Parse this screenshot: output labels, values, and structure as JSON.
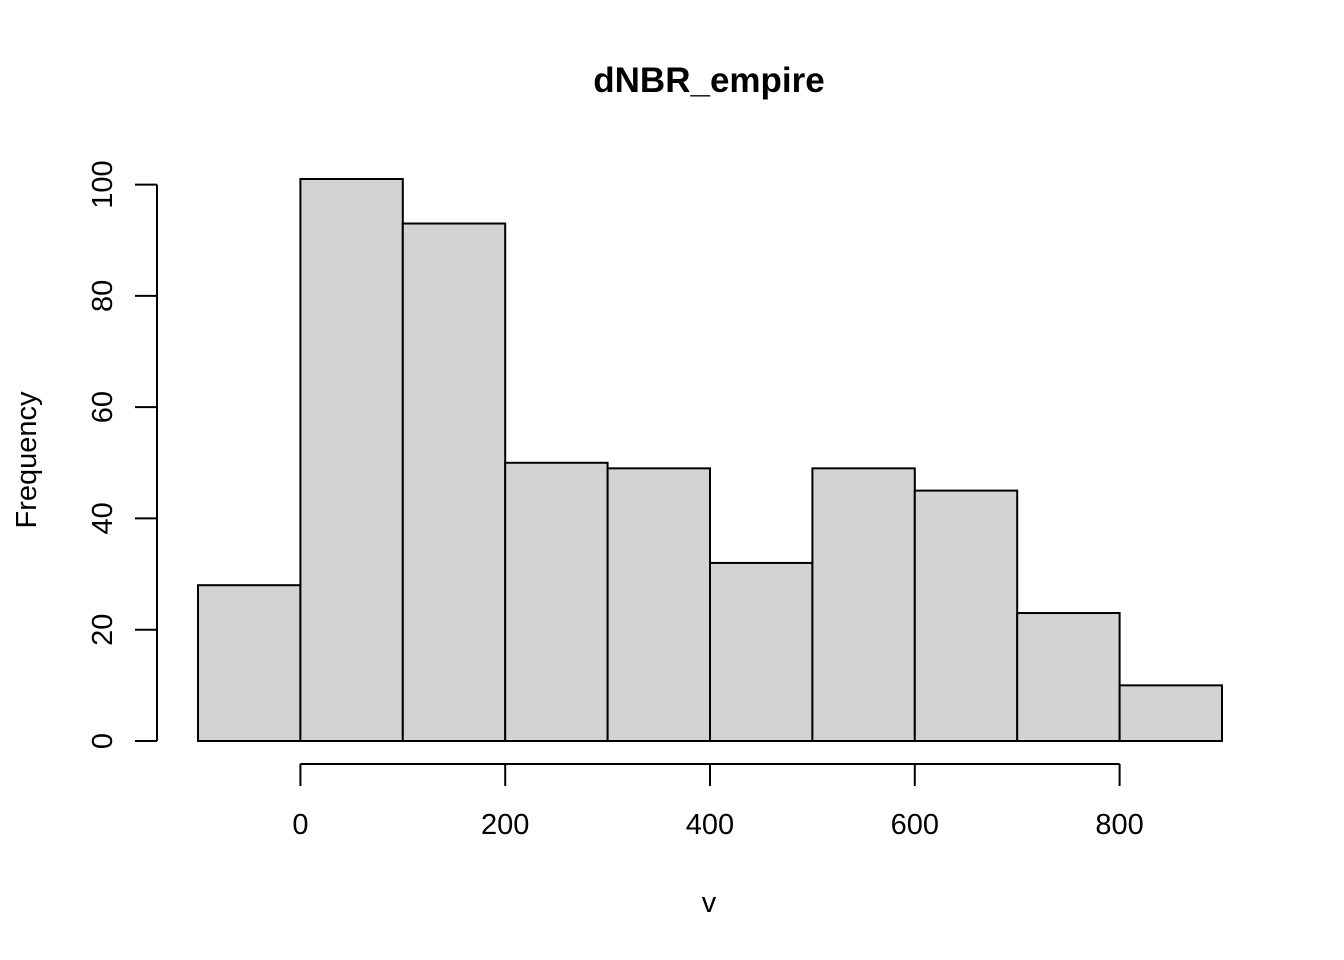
{
  "chart_data": {
    "type": "bar",
    "title": "dNBR_empire",
    "xlabel": "v",
    "ylabel": "Frequency",
    "bins": [
      {
        "start": -100,
        "end": 0,
        "count": 28
      },
      {
        "start": 0,
        "end": 100,
        "count": 101
      },
      {
        "start": 100,
        "end": 200,
        "count": 93
      },
      {
        "start": 200,
        "end": 300,
        "count": 50
      },
      {
        "start": 300,
        "end": 400,
        "count": 49
      },
      {
        "start": 400,
        "end": 500,
        "count": 32
      },
      {
        "start": 500,
        "end": 600,
        "count": 49
      },
      {
        "start": 600,
        "end": 700,
        "count": 45
      },
      {
        "start": 700,
        "end": 800,
        "count": 23
      },
      {
        "start": 800,
        "end": 900,
        "count": 10
      }
    ],
    "x_ticks": [
      "0",
      "200",
      "400",
      "600",
      "800"
    ],
    "y_ticks": [
      "0",
      "20",
      "40",
      "60",
      "80",
      "100"
    ],
    "xlim": [
      -100,
      900
    ],
    "ylim": [
      0,
      101
    ],
    "grid": false,
    "bar_color": "#d3d3d3",
    "edge_color": "#000000"
  }
}
